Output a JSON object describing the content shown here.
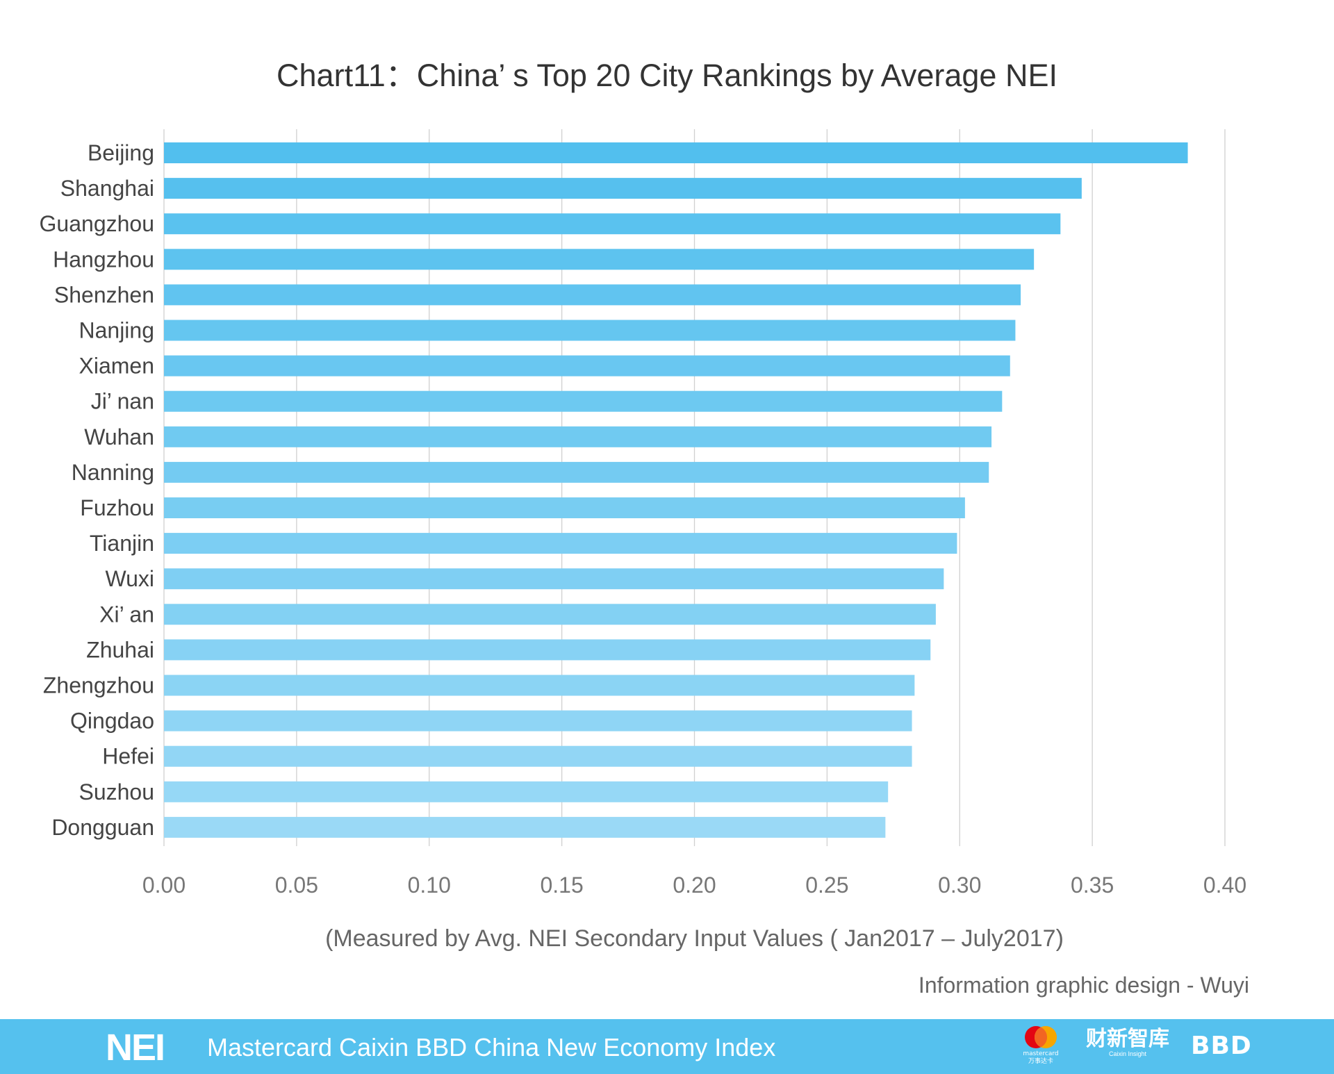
{
  "chart_data": {
    "type": "bar",
    "orientation": "horizontal",
    "title": "Chart11：China’ s Top 20 City Rankings by Average NEI",
    "subtitle": "(Measured by Avg. NEI Secondary Input Values ( Jan2017 – July2017)",
    "categories": [
      "Beijing",
      "Shanghai",
      "Guangzhou",
      "Hangzhou",
      "Shenzhen",
      "Nanjing",
      "Xiamen",
      "Ji’ nan",
      "Wuhan",
      "Nanning",
      "Fuzhou",
      "Tianjin",
      "Wuxi",
      "Xi’ an",
      "Zhuhai",
      "Zhengzhou",
      "Qingdao",
      "Hefei",
      "Suzhou",
      "Dongguan"
    ],
    "values": [
      0.386,
      0.346,
      0.338,
      0.328,
      0.323,
      0.321,
      0.319,
      0.316,
      0.312,
      0.311,
      0.302,
      0.299,
      0.294,
      0.291,
      0.289,
      0.283,
      0.282,
      0.282,
      0.273,
      0.272
    ],
    "xlim": [
      0,
      0.4
    ],
    "xticks": [
      "0.00",
      "0.05",
      "0.10",
      "0.15",
      "0.20",
      "0.25",
      "0.30",
      "0.35",
      "0.40"
    ],
    "grid": true,
    "colors": {
      "bar_top": "#52bfee",
      "bar_bottom": "#9ad9f6",
      "grid": "#d0d0d0"
    }
  },
  "credit": "Information graphic design - Wuyi",
  "footer": {
    "logo": "NEI",
    "text": "Mastercard Caixin BBD China New Economy Index",
    "background": "#55c1ee",
    "partner_logos": [
      "mastercard 万事达卡",
      "财新智库 Caixin Insight",
      "BBD"
    ]
  }
}
